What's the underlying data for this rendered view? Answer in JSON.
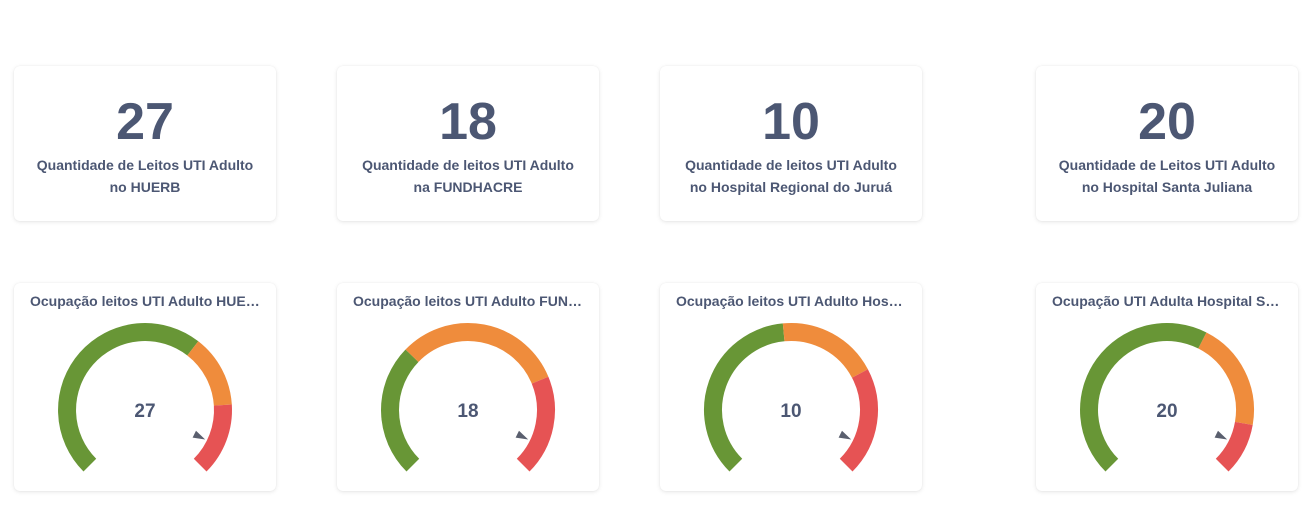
{
  "colors": {
    "green": "#689636",
    "orange": "#ef8c3c",
    "red": "#e65354",
    "text": "#4c5773",
    "needle": "#5a5f6e"
  },
  "scalars": [
    {
      "value": "27",
      "label": "Quantidade de Leitos UTI Adulto no HUERB"
    },
    {
      "value": "18",
      "label": "Quantidade de leitos UTI Adulto na FUNDHACRE"
    },
    {
      "value": "10",
      "label": "Quantidade de leitos UTI Adulto no Hospital Regional do Juruá"
    },
    {
      "value": "20",
      "label": "Quantidade de Leitos UTI Adulto no Hospital Santa Juliana"
    }
  ],
  "gauges": [
    {
      "title": "Ocupação leitos UTI Adulto HUERB",
      "value": "27",
      "segments": [
        {
          "color": "green",
          "fraction": 0.64
        },
        {
          "color": "orange",
          "fraction": 0.18
        },
        {
          "color": "red",
          "fraction": 0.18
        }
      ],
      "needle_fraction": 0.93
    },
    {
      "title": "Ocupação leitos UTI Adulto FUNDHACRE",
      "value": "18",
      "segments": [
        {
          "color": "green",
          "fraction": 0.33
        },
        {
          "color": "orange",
          "fraction": 0.42
        },
        {
          "color": "red",
          "fraction": 0.25
        }
      ],
      "needle_fraction": 0.93
    },
    {
      "title": "Ocupação leitos UTI Adulto Hospital Regional do Juruá",
      "value": "10",
      "segments": [
        {
          "color": "green",
          "fraction": 0.48
        },
        {
          "color": "orange",
          "fraction": 0.25
        },
        {
          "color": "red",
          "fraction": 0.27
        }
      ],
      "needle_fraction": 0.93
    },
    {
      "title": "Ocupação UTI Adulta Hospital Santa Juliana",
      "value": "20",
      "segments": [
        {
          "color": "green",
          "fraction": 0.6
        },
        {
          "color": "orange",
          "fraction": 0.27
        },
        {
          "color": "red",
          "fraction": 0.13
        }
      ],
      "needle_fraction": 0.93
    }
  ]
}
